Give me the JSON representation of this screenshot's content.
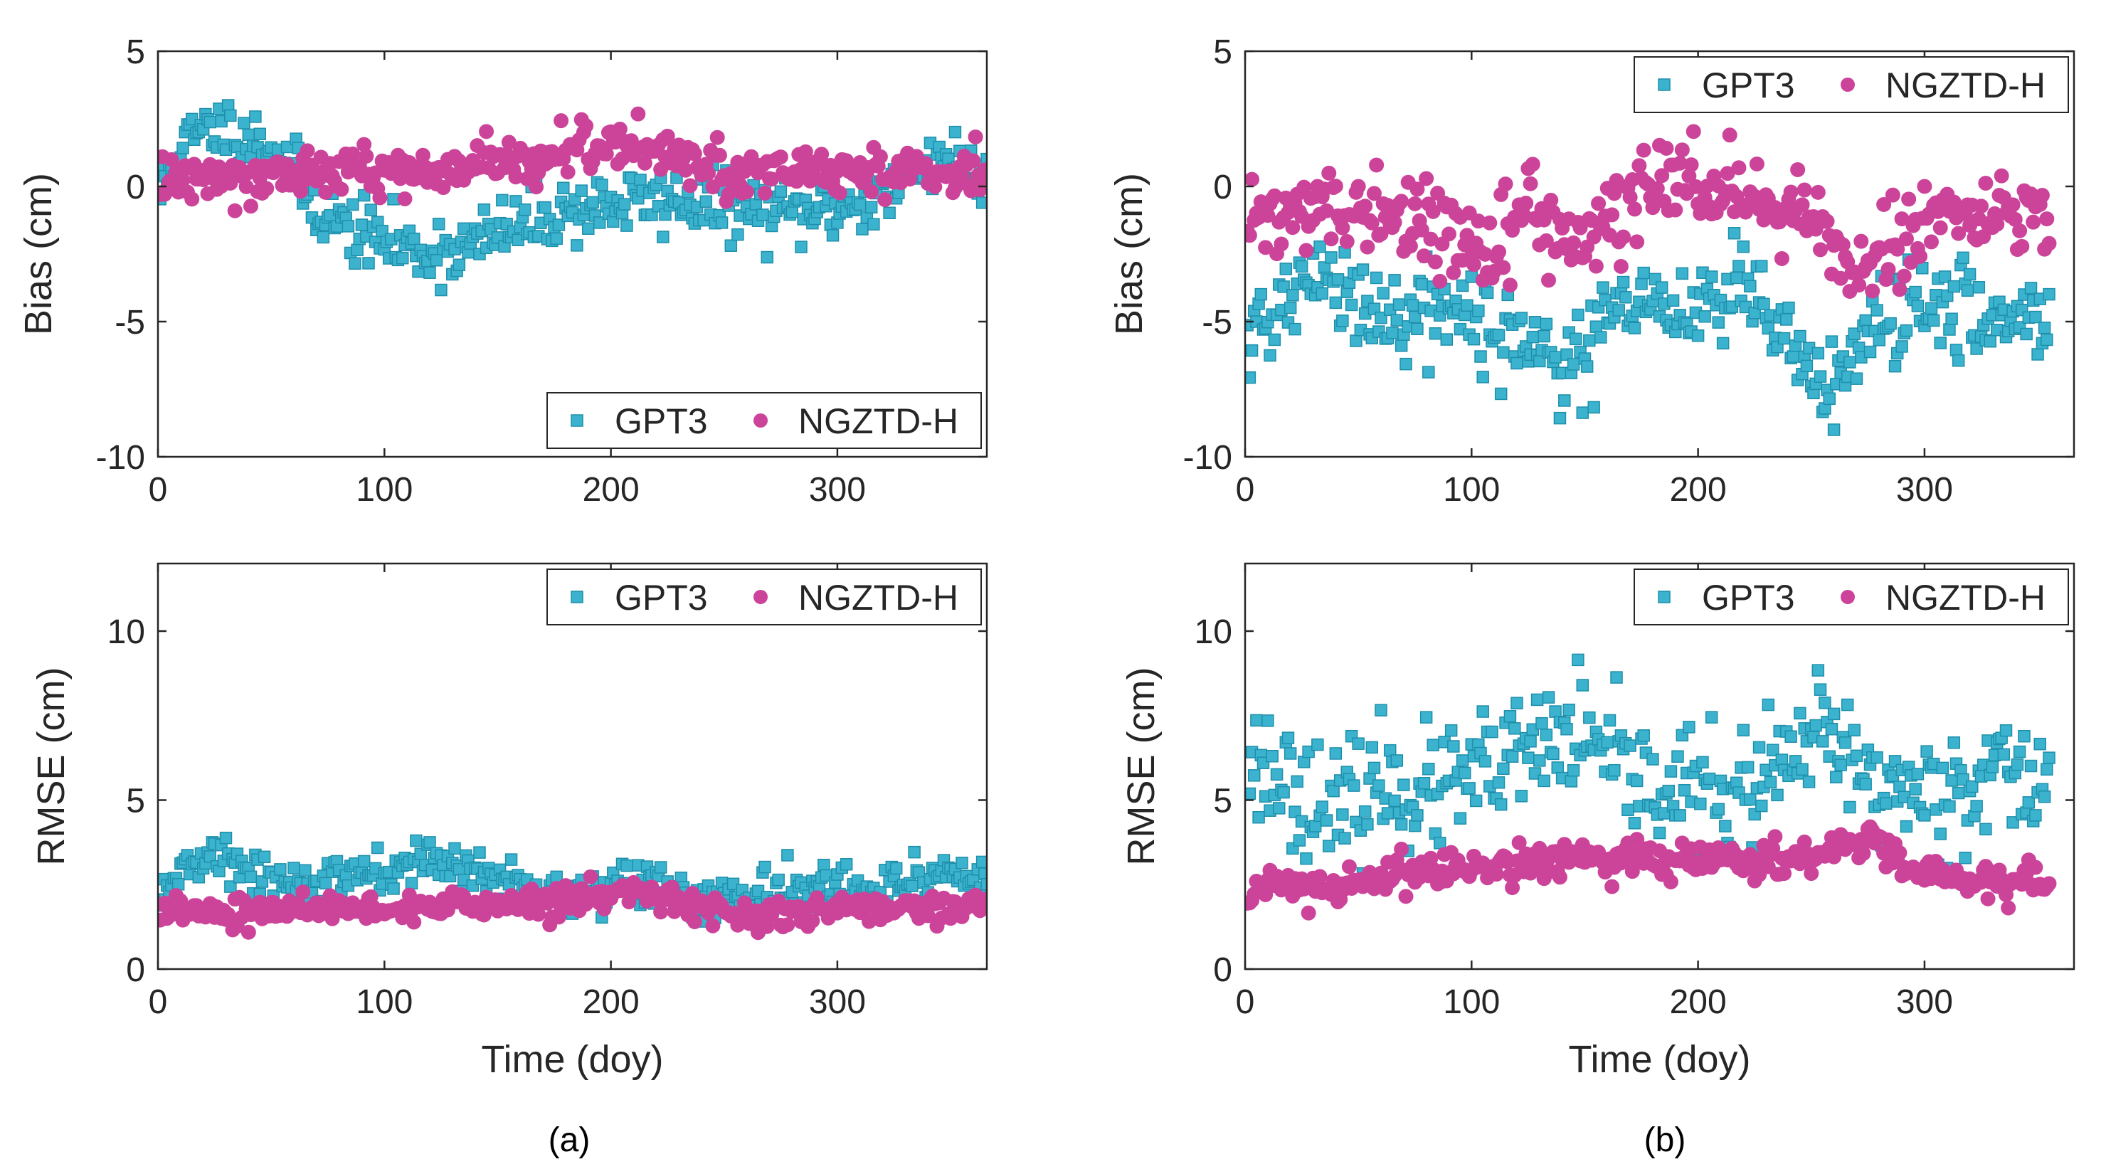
{
  "colors": {
    "gpt3": "#3BB3CF",
    "gpt3_edge": "#1E8FAA",
    "ngztd": "#CC4499",
    "axis": "#262626"
  },
  "captions": [
    "(a)",
    "(b)"
  ],
  "chart_data": [
    {
      "panel": "(a)",
      "type": "scatter",
      "ylabel": "Bias (cm)",
      "xlabel": "",
      "xlim": [
        0,
        366
      ],
      "ylim": [
        -10,
        5
      ],
      "xticks": [
        0,
        100,
        200,
        300
      ],
      "yticks": [
        -10,
        -5,
        0,
        5
      ],
      "xticklabels": [
        "0",
        "100",
        "200",
        "300"
      ],
      "yticklabels": [
        "-10",
        "-5",
        "0",
        "5"
      ],
      "legend": {
        "location": "bottom-right",
        "entries": [
          "GPT3",
          "NGZTD-H"
        ]
      },
      "series": [
        {
          "name": "GPT3",
          "marker": "square",
          "generator": {
            "knots": [
              [
                0,
                -0.5
              ],
              [
                10,
                1.5
              ],
              [
                25,
                2.2
              ],
              [
                40,
                1.8
              ],
              [
                55,
                1.2
              ],
              [
                68,
                -0.6
              ],
              [
                85,
                -1.6
              ],
              [
                100,
                -2.0
              ],
              [
                115,
                -2.4
              ],
              [
                135,
                -2.3
              ],
              [
                155,
                -1.6
              ],
              [
                180,
                -0.9
              ],
              [
                205,
                -0.6
              ],
              [
                230,
                -0.5
              ],
              [
                260,
                -0.9
              ],
              [
                290,
                -1.0
              ],
              [
                320,
                -0.3
              ],
              [
                345,
                1.2
              ],
              [
                366,
                0.3
              ]
            ],
            "noise": 0.6,
            "n": 366,
            "seed": 11
          }
        },
        {
          "name": "NGZTD-H",
          "marker": "circle",
          "generator": {
            "knots": [
              [
                0,
                0.2
              ],
              [
                30,
                0.5
              ],
              [
                60,
                0.4
              ],
              [
                90,
                0.6
              ],
              [
                120,
                0.5
              ],
              [
                150,
                0.8
              ],
              [
                180,
                1.3
              ],
              [
                200,
                1.5
              ],
              [
                215,
                1.6
              ],
              [
                240,
                0.6
              ],
              [
                270,
                0.5
              ],
              [
                300,
                0.6
              ],
              [
                330,
                0.7
              ],
              [
                366,
                0.4
              ]
            ],
            "noise": 0.45,
            "n": 366,
            "seed": 12
          }
        }
      ]
    },
    {
      "panel": "(a)",
      "type": "scatter",
      "ylabel": "RMSE (cm)",
      "xlabel": "Time (doy)",
      "xlim": [
        0,
        366
      ],
      "ylim": [
        0,
        12
      ],
      "xticks": [
        0,
        100,
        200,
        300
      ],
      "yticks": [
        0,
        5,
        10
      ],
      "xticklabels": [
        "0",
        "100",
        "200",
        "300"
      ],
      "yticklabels": [
        "0",
        "5",
        "10"
      ],
      "legend": {
        "location": "top-right",
        "entries": [
          "GPT3",
          "NGZTD-H"
        ]
      },
      "series": [
        {
          "name": "GPT3",
          "marker": "square",
          "generator": {
            "knots": [
              [
                0,
                2.4
              ],
              [
                20,
                3.3
              ],
              [
                40,
                3.0
              ],
              [
                60,
                2.4
              ],
              [
                80,
                2.6
              ],
              [
                100,
                2.8
              ],
              [
                115,
                3.2
              ],
              [
                135,
                3.0
              ],
              [
                160,
                2.5
              ],
              [
                190,
                2.3
              ],
              [
                210,
                2.7
              ],
              [
                240,
                2.0
              ],
              [
                270,
                2.1
              ],
              [
                300,
                2.5
              ],
              [
                330,
                2.4
              ],
              [
                350,
                2.9
              ],
              [
                366,
                2.6
              ]
            ],
            "noise": 0.35,
            "n": 366,
            "seed": 13
          }
        },
        {
          "name": "NGZTD-H",
          "marker": "circle",
          "generator": {
            "knots": [
              [
                0,
                1.8
              ],
              [
                50,
                1.8
              ],
              [
                100,
                1.8
              ],
              [
                150,
                1.9
              ],
              [
                180,
                2.0
              ],
              [
                210,
                2.4
              ],
              [
                230,
                1.9
              ],
              [
                260,
                1.6
              ],
              [
                300,
                1.8
              ],
              [
                340,
                1.8
              ],
              [
                366,
                1.9
              ]
            ],
            "noise": 0.22,
            "n": 366,
            "seed": 14
          }
        }
      ]
    },
    {
      "panel": "(b)",
      "type": "scatter",
      "ylabel": "Bias (cm)",
      "xlabel": "",
      "xlim": [
        0,
        366
      ],
      "ylim": [
        -10,
        5
      ],
      "xticks": [
        0,
        100,
        200,
        300
      ],
      "yticks": [
        -10,
        -5,
        0,
        5
      ],
      "xticklabels": [
        "0",
        "100",
        "200",
        "300"
      ],
      "yticklabels": [
        "-10",
        "-5",
        "0",
        "5"
      ],
      "legend": {
        "location": "top-right",
        "entries": [
          "GPT3",
          "NGZTD-H"
        ]
      },
      "series": [
        {
          "name": "GPT3",
          "marker": "square",
          "generator": {
            "knots": [
              [
                0,
                -5.8
              ],
              [
                15,
                -4.5
              ],
              [
                35,
                -3.2
              ],
              [
                55,
                -4.8
              ],
              [
                80,
                -4.2
              ],
              [
                100,
                -5.2
              ],
              [
                120,
                -5.5
              ],
              [
                140,
                -6.5
              ],
              [
                165,
                -4.8
              ],
              [
                200,
                -4.4
              ],
              [
                220,
                -3.8
              ],
              [
                240,
                -5.8
              ],
              [
                258,
                -7.8
              ],
              [
                275,
                -4.8
              ],
              [
                300,
                -4.4
              ],
              [
                330,
                -5.0
              ],
              [
                358,
                -4.6
              ]
            ],
            "noise": 0.85,
            "n": 355,
            "seed": 21
          }
        },
        {
          "name": "NGZTD-H",
          "marker": "circle",
          "generator": {
            "knots": [
              [
                0,
                -1.5
              ],
              [
                20,
                -0.9
              ],
              [
                45,
                -1.2
              ],
              [
                70,
                -1.0
              ],
              [
                90,
                -1.6
              ],
              [
                105,
                -2.2
              ],
              [
                125,
                -0.9
              ],
              [
                145,
                -2.2
              ],
              [
                170,
                -0.6
              ],
              [
                195,
                0.2
              ],
              [
                215,
                0.1
              ],
              [
                235,
                -0.5
              ],
              [
                255,
                -1.6
              ],
              [
                270,
                -3.2
              ],
              [
                290,
                -1.8
              ],
              [
                310,
                -0.8
              ],
              [
                335,
                -1.1
              ],
              [
                358,
                -1.2
              ]
            ],
            "noise": 0.75,
            "n": 355,
            "seed": 22
          }
        }
      ]
    },
    {
      "panel": "(b)",
      "type": "scatter",
      "ylabel": "RMSE (cm)",
      "xlabel": "Time (doy)",
      "xlim": [
        0,
        366
      ],
      "ylim": [
        0,
        12
      ],
      "xticks": [
        0,
        100,
        200,
        300
      ],
      "yticks": [
        0,
        5,
        10
      ],
      "xticklabels": [
        "0",
        "100",
        "200",
        "300"
      ],
      "yticklabels": [
        "0",
        "5",
        "10"
      ],
      "legend": {
        "location": "top-right",
        "entries": [
          "GPT3",
          "NGZTD-H"
        ]
      },
      "series": [
        {
          "name": "GPT3",
          "marker": "square",
          "generator": {
            "knots": [
              [
                0,
                6.2
              ],
              [
                20,
                5.6
              ],
              [
                40,
                4.4
              ],
              [
                60,
                5.6
              ],
              [
                80,
                5.2
              ],
              [
                100,
                5.6
              ],
              [
                120,
                6.2
              ],
              [
                145,
                7.0
              ],
              [
                165,
                5.8
              ],
              [
                190,
                5.4
              ],
              [
                215,
                5.0
              ],
              [
                240,
                6.0
              ],
              [
                255,
                7.0
              ],
              [
                275,
                5.6
              ],
              [
                300,
                5.2
              ],
              [
                330,
                5.8
              ],
              [
                358,
                5.4
              ]
            ],
            "noise": 0.9,
            "n": 355,
            "seed": 23
          }
        },
        {
          "name": "NGZTD-H",
          "marker": "circle",
          "generator": {
            "knots": [
              [
                0,
                2.4
              ],
              [
                30,
                2.3
              ],
              [
                60,
                2.6
              ],
              [
                100,
                3.0
              ],
              [
                140,
                3.2
              ],
              [
                170,
                3.3
              ],
              [
                200,
                3.2
              ],
              [
                230,
                3.2
              ],
              [
                260,
                3.5
              ],
              [
                275,
                3.9
              ],
              [
                290,
                3.0
              ],
              [
                320,
                2.6
              ],
              [
                358,
                2.5
              ]
            ],
            "noise": 0.28,
            "n": 355,
            "seed": 24
          }
        }
      ]
    }
  ]
}
